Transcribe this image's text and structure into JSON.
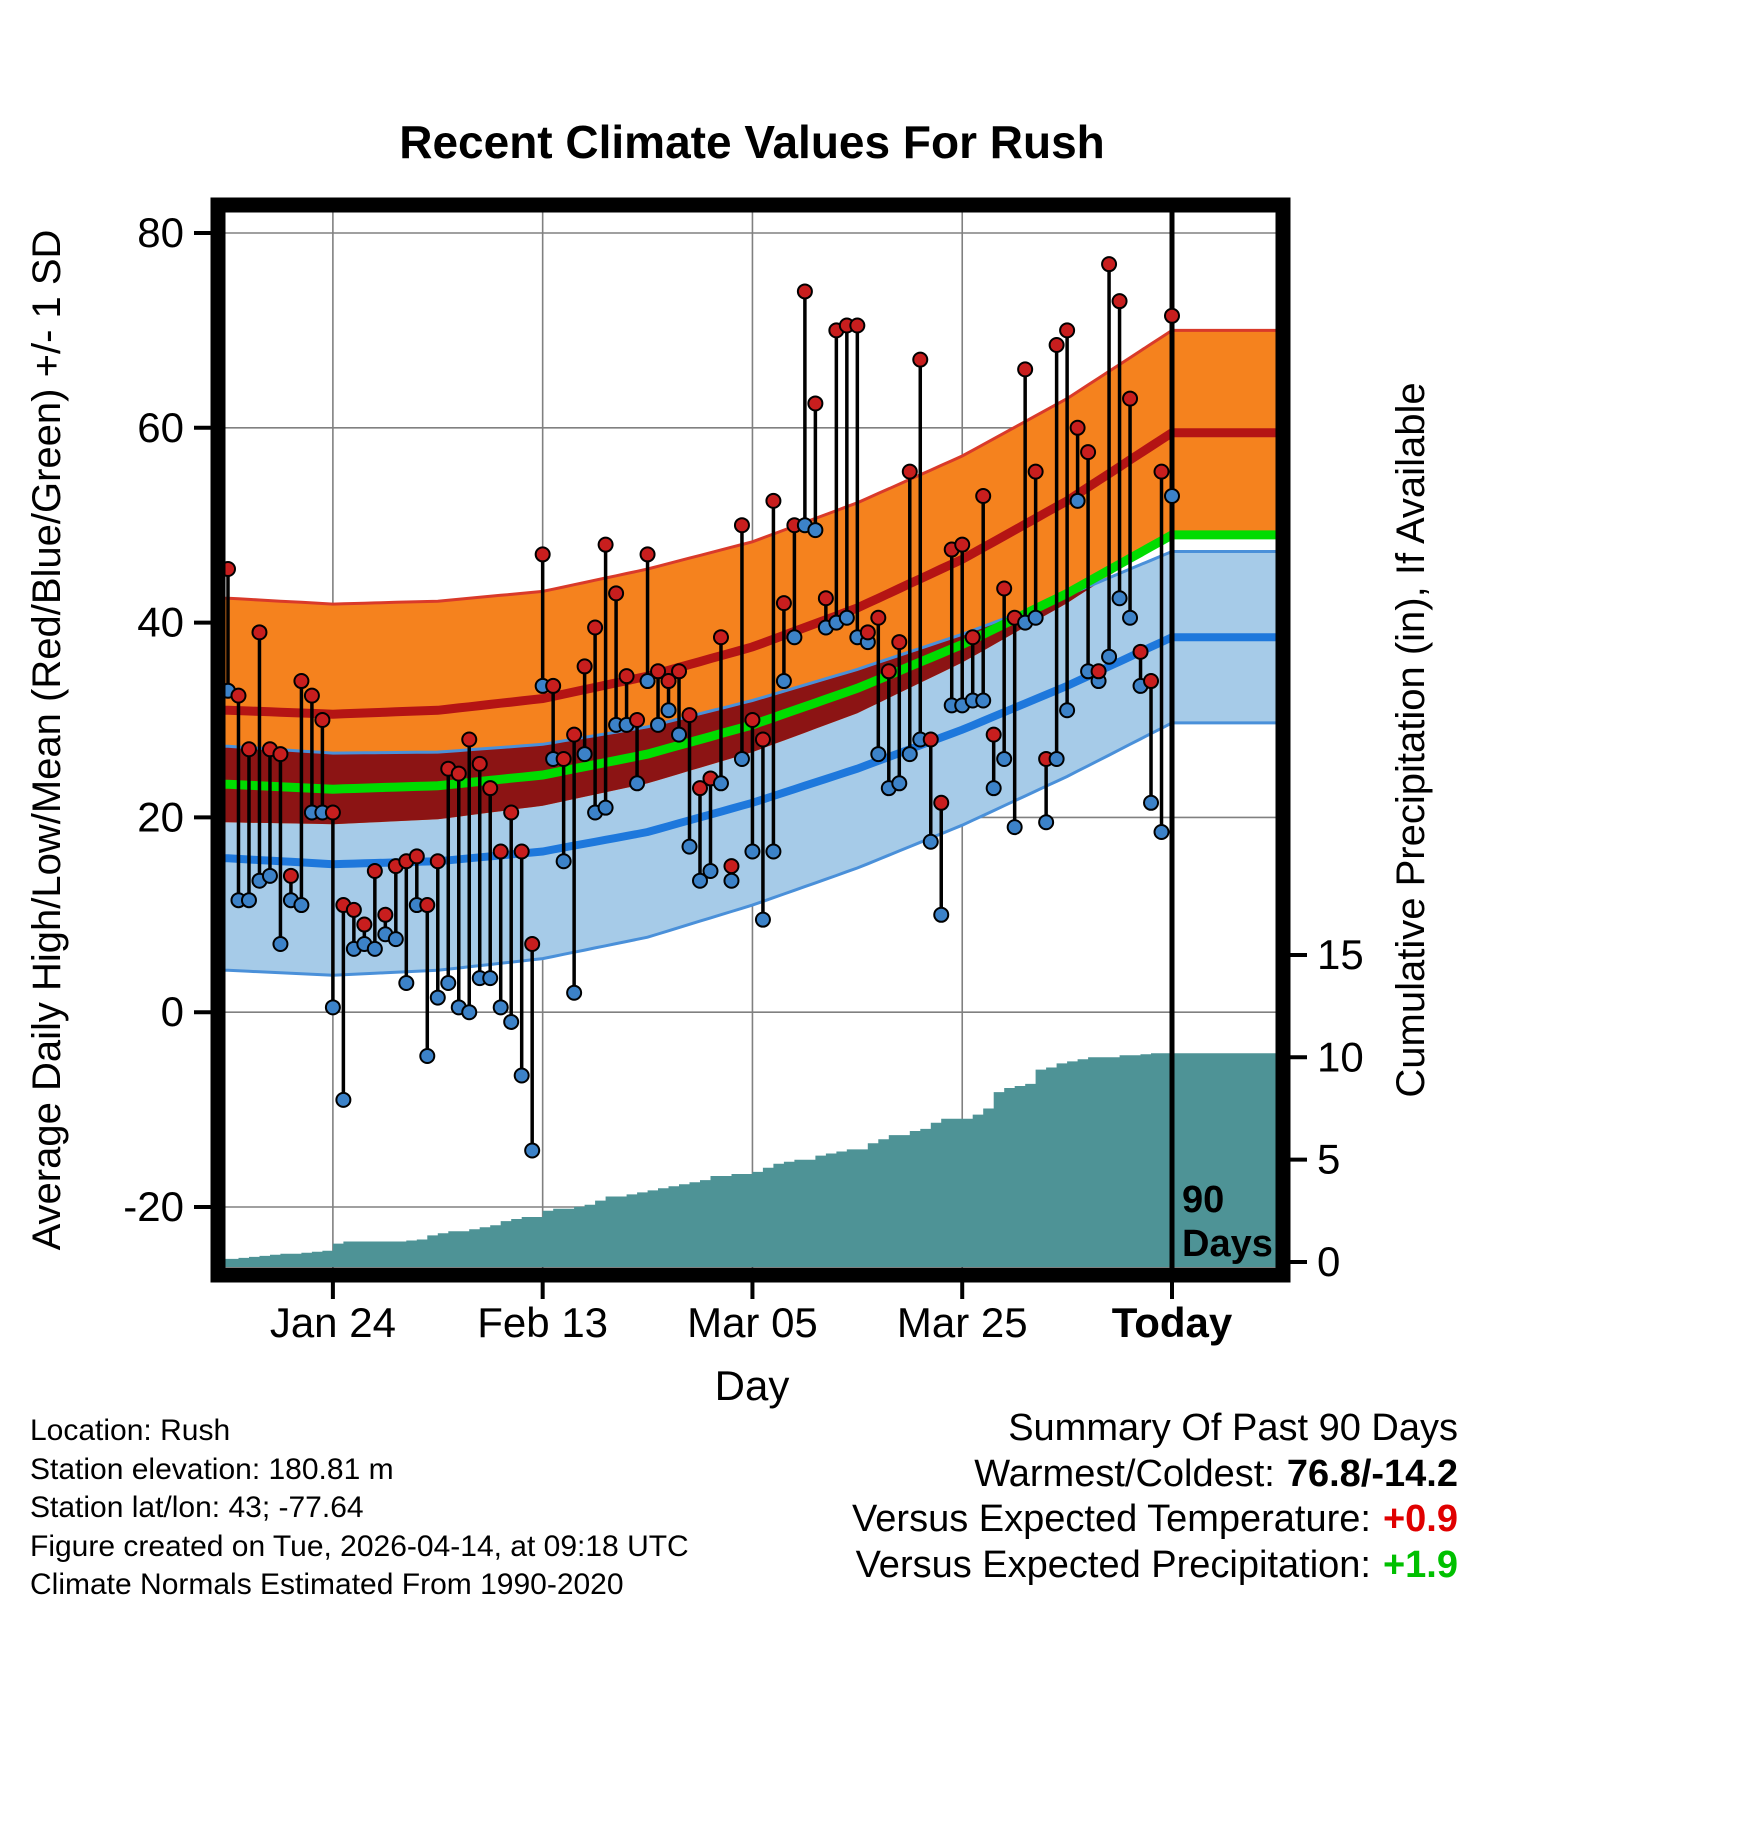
{
  "title": "Recent Climate Values For Rush",
  "axes": {
    "left_label": "Average Daily High/Low/Mean (Red/Blue/Green) +/- 1 SD",
    "right_label": "Cumulative Precipitation (in), If Available",
    "x_label": "Day",
    "left_ticks": [
      80,
      60,
      40,
      20,
      0,
      -20
    ],
    "right_ticks": [
      15,
      10,
      5,
      0
    ],
    "x_tick_labels": [
      "Jan 24",
      "Feb 13",
      "Mar 05",
      "Mar 25",
      "Today"
    ],
    "x_tick_days": [
      10,
      30,
      50,
      70,
      90
    ]
  },
  "annotation": {
    "line1": "90",
    "line2": "Days"
  },
  "colors": {
    "high_band": "#F5821E",
    "high_line": "#B41414",
    "overlap_band": "#8C1414",
    "low_band": "#A6CBE8",
    "low_line": "#1E78DC",
    "mean_line": "#00DC00",
    "precip_fill": "#4E9396",
    "high_dot": "#C81E1E",
    "low_dot": "#3C82C8",
    "band_edge_red": "#D93A2A",
    "band_edge_blue": "#4A90D9",
    "today_line": "#000000",
    "grid": "#808080",
    "vs_temp": "#e00000",
    "vs_precip": "#00c000"
  },
  "chart_data": {
    "type": "composite",
    "subtype": "daily high/low range plot with climatology bands and cumulative precipitation area",
    "x_unit": "day_index (0 = 90 days ago, 90 = Today)",
    "n_days": 91,
    "temp_axis_range": [
      -27,
      83
    ],
    "precip_axis_range": [
      0,
      15
    ],
    "daily_high": [
      45.5,
      32.5,
      27,
      39,
      27,
      26.5,
      14,
      34,
      32.5,
      30,
      20.5,
      11,
      10.5,
      9,
      14.5,
      10,
      15,
      15.5,
      16,
      11,
      15.5,
      25,
      24.5,
      28,
      25.5,
      23,
      16.5,
      20.5,
      16.5,
      7,
      47,
      33.5,
      26,
      28.5,
      35.5,
      39.5,
      48,
      43,
      34.5,
      30,
      47,
      35,
      34,
      35,
      30.5,
      23,
      24,
      38.5,
      15,
      50,
      30,
      28,
      52.5,
      42,
      50,
      74,
      62.5,
      42.5,
      70,
      70.5,
      70.5,
      39,
      40.5,
      35,
      38,
      55.5,
      67,
      28,
      21.5,
      47.5,
      48,
      38.5,
      53,
      28.5,
      43.5,
      40.5,
      66,
      55.5,
      26,
      68.5,
      70,
      60,
      57.5,
      35,
      76.8,
      73,
      63,
      37,
      34,
      55.5,
      71.5
    ],
    "daily_low": [
      33,
      11.5,
      11.5,
      13.5,
      14,
      7,
      11.5,
      11,
      20.5,
      20.5,
      0.5,
      -9,
      6.5,
      7,
      6.5,
      8,
      7.5,
      3,
      11,
      -4.5,
      1.5,
      3,
      0.5,
      0,
      3.5,
      3.5,
      0.5,
      -1,
      -6.5,
      -14.2,
      33.5,
      26,
      15.5,
      2,
      26.5,
      20.5,
      21,
      29.5,
      29.5,
      23.5,
      34,
      29.5,
      31,
      28.5,
      17,
      13.5,
      14.5,
      23.5,
      13.5,
      26,
      16.5,
      9.5,
      16.5,
      34,
      38.5,
      50,
      49.5,
      39.5,
      40,
      40.5,
      38.5,
      38,
      26.5,
      23,
      23.5,
      26.5,
      28,
      17.5,
      10,
      31.5,
      31.5,
      32,
      32,
      23,
      26,
      19,
      40,
      40.5,
      19.5,
      26,
      31,
      52.5,
      35,
      34,
      36.5,
      42.5,
      40.5,
      33.5,
      21.5,
      18.5,
      53
    ],
    "normals": {
      "control_day_stride": 10,
      "avg_high": [
        31.0,
        30.6,
        31.0,
        32.2,
        34.5,
        37.5,
        41.5,
        46.5,
        52.5,
        59.5
      ],
      "avg_low": [
        15.8,
        15.2,
        15.5,
        16.5,
        18.5,
        21.5,
        25.0,
        29.0,
        33.5,
        38.5
      ],
      "sd_high": [
        11.5,
        11.3,
        11.2,
        11.0,
        11.0,
        10.8,
        10.8,
        10.6,
        10.5,
        10.5
      ],
      "sd_low": [
        11.5,
        11.4,
        11.2,
        11.0,
        10.8,
        10.5,
        10.2,
        9.8,
        9.3,
        8.8
      ]
    },
    "cumulative_precip_in": [
      0.15,
      0.2,
      0.25,
      0.3,
      0.35,
      0.4,
      0.4,
      0.45,
      0.5,
      0.55,
      0.9,
      1,
      1,
      1,
      1,
      1,
      1,
      1.05,
      1.1,
      1.3,
      1.4,
      1.5,
      1.5,
      1.6,
      1.7,
      1.8,
      2,
      2.1,
      2.2,
      2.2,
      2.5,
      2.6,
      2.6,
      2.7,
      2.8,
      3,
      3.2,
      3.2,
      3.3,
      3.4,
      3.5,
      3.6,
      3.7,
      3.8,
      3.9,
      4,
      4.2,
      4.2,
      4.3,
      4.3,
      4.4,
      4.6,
      4.8,
      4.9,
      5,
      5,
      5.2,
      5.3,
      5.4,
      5.5,
      5.5,
      5.8,
      6,
      6.2,
      6.2,
      6.4,
      6.5,
      6.8,
      7,
      7,
      7,
      7.2,
      7.5,
      8.3,
      8.5,
      8.6,
      8.7,
      9.4,
      9.5,
      9.7,
      9.8,
      9.9,
      10,
      10,
      10,
      10.1,
      10.1,
      10.15,
      10.2,
      10.2,
      10.2
    ]
  },
  "footer": {
    "lines": [
      "Location: Rush",
      "Station elevation: 180.81 m",
      "Station lat/lon: 43; -77.64",
      "Figure created on Tue, 2026-04-14, at 09:18 UTC",
      "Climate Normals Estimated From 1990-2020"
    ]
  },
  "summary": {
    "title": "Summary Of Past 90 Days",
    "warmest_coldest_label": "Warmest/Coldest:",
    "warmest_coldest_value": "76.8/-14.2",
    "vs_temp_label": "Versus Expected Temperature:",
    "vs_temp_value": "+0.9",
    "vs_precip_label": "Versus Expected Precipitation:",
    "vs_precip_value": "+1.9"
  }
}
